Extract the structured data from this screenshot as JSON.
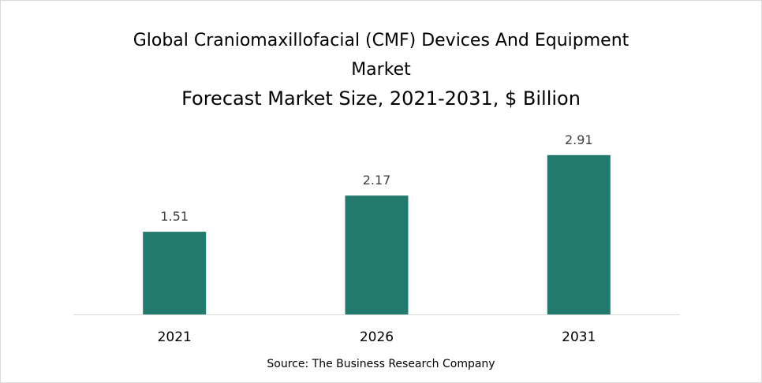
{
  "chart_data": {
    "type": "bar",
    "title_lines": [
      "Global Craniomaxillofacial (CMF) Devices And Equipment",
      "Market",
      "Forecast Market Size, 2021-2031, $ Billion"
    ],
    "categories": [
      "2021",
      "2026",
      "2031"
    ],
    "values": [
      1.51,
      2.17,
      2.91
    ],
    "value_labels": [
      "1.51",
      "2.17",
      "2.91"
    ],
    "xlabel": "",
    "ylabel": "",
    "ylim": [
      0,
      3.2
    ],
    "grid": false,
    "legend": "none",
    "bar_color": "#217a6b",
    "axis_color": "#d9d9d9"
  },
  "source": "Source: The Business Research Company"
}
